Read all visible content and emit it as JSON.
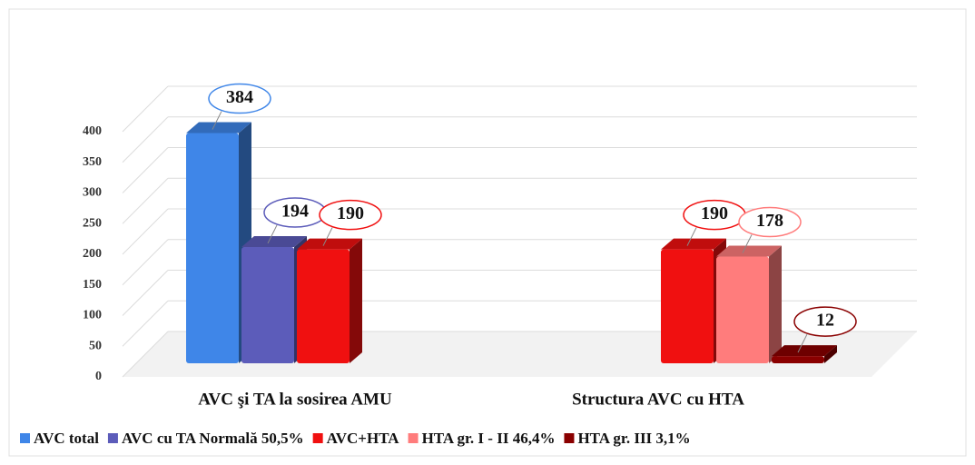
{
  "chart_data": {
    "type": "bar3d",
    "categories": [
      "AVC şi TA la sosirea AMU",
      "Structura AVC cu HTA"
    ],
    "series": [
      {
        "name": "AVC total",
        "color": "#3f86e8",
        "values": [
          384,
          null
        ]
      },
      {
        "name": "AVC cu TA Normală 50,5%",
        "color": "#5c5cba",
        "values": [
          194,
          null
        ]
      },
      {
        "name": "AVC+HTA",
        "color": "#f01010",
        "values": [
          190,
          190
        ]
      },
      {
        "name": "HTA gr. I - II 46,4%",
        "color": "#ff7c7c",
        "values": [
          null,
          178
        ]
      },
      {
        "name": "HTA gr. III 3,1%",
        "color": "#8a0000",
        "values": [
          null,
          12
        ]
      }
    ],
    "ylim": [
      0,
      400
    ],
    "yticks": [
      0,
      50,
      100,
      150,
      200,
      250,
      300,
      350,
      400
    ],
    "grid": true
  }
}
